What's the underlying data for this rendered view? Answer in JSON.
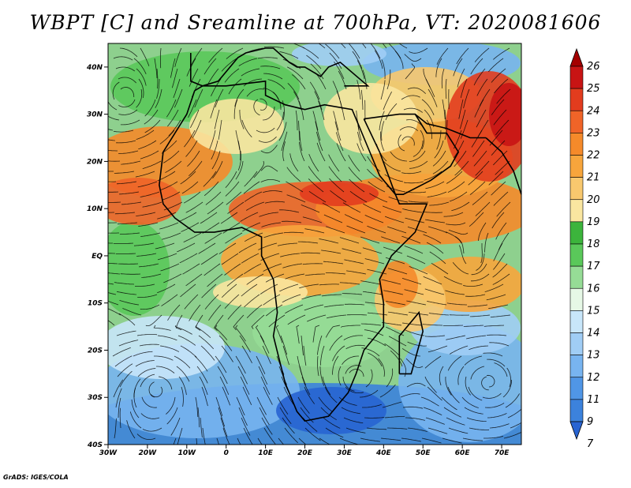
{
  "title": "WBPT [C] and Sreamline at 700hPa, VT: 2020081606",
  "credit": "GrADS: IGES/COLA",
  "map": {
    "lon_range": [
      -30,
      75
    ],
    "lat_range": [
      -40,
      45
    ],
    "lat_ticks": [
      {
        "value": 40,
        "label": "40N"
      },
      {
        "value": 30,
        "label": "30N"
      },
      {
        "value": 20,
        "label": "20N"
      },
      {
        "value": 10,
        "label": "10N"
      },
      {
        "value": 0,
        "label": "EQ"
      },
      {
        "value": -10,
        "label": "10S"
      },
      {
        "value": -20,
        "label": "20S"
      },
      {
        "value": -30,
        "label": "30S"
      },
      {
        "value": -40,
        "label": "40S"
      }
    ],
    "lon_ticks": [
      {
        "value": -30,
        "label": "30W"
      },
      {
        "value": -20,
        "label": "20W"
      },
      {
        "value": -10,
        "label": "10W"
      },
      {
        "value": 0,
        "label": "0"
      },
      {
        "value": 10,
        "label": "10E"
      },
      {
        "value": 20,
        "label": "20E"
      },
      {
        "value": 30,
        "label": "30E"
      },
      {
        "value": 40,
        "label": "40E"
      },
      {
        "value": 50,
        "label": "50E"
      },
      {
        "value": 60,
        "label": "60E"
      },
      {
        "value": 70,
        "label": "70E"
      }
    ]
  },
  "colorbar": {
    "labels": [
      "26",
      "25",
      "24",
      "23",
      "22",
      "21",
      "20",
      "19",
      "18",
      "17",
      "16",
      "15",
      "14",
      "13",
      "12",
      "11",
      "9",
      "7"
    ],
    "colors": [
      "#a40000",
      "#c81414",
      "#e23c1e",
      "#f06428",
      "#f58a2a",
      "#f7a53c",
      "#f8c86e",
      "#fae6a0",
      "#3cb43c",
      "#5ac85a",
      "#96dc96",
      "#e6f8e6",
      "#c8e6fa",
      "#a0cdf5",
      "#78b4f0",
      "#5096e6",
      "#3c82dc",
      "#2864d2"
    ]
  }
}
